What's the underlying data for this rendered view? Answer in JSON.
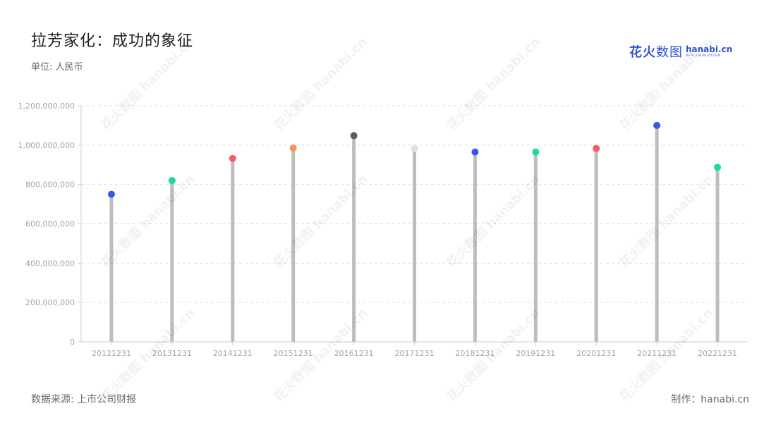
{
  "title": "拉芳家化：成功的象征",
  "unit_label": "单位: 人民币",
  "source_label": "数据来源: 上市公司财报",
  "credit_label": "制作：hanabi.cn",
  "logo": {
    "cn_text": "花火",
    "cn_text_light": "数图",
    "en_text": "hanabi.cn",
    "en_sub": "DATA VISUALIZATION"
  },
  "colors": {
    "stem": "#bdbdbd",
    "grid": "#dddddd",
    "axis": "#cccccc",
    "tick_label": "#a0a4ab",
    "brand": "#2f54d6"
  },
  "chart_data": {
    "type": "lollipop",
    "categories": [
      "20121231",
      "20131231",
      "20141231",
      "20151231",
      "20161231",
      "20171231",
      "20181231",
      "20191231",
      "20201231",
      "20211231",
      "20221231"
    ],
    "values": [
      750000000,
      820000000,
      932000000,
      985000000,
      1048000000,
      982000000,
      965000000,
      965000000,
      983000000,
      1100000000,
      887000000
    ],
    "point_colors": [
      "#3a57e8",
      "#1fd99a",
      "#f35d5d",
      "#f5935d",
      "#5b5d66",
      "#dcdfe4",
      "#3a57e8",
      "#1fd99a",
      "#f35d5d",
      "#3a57e8",
      "#1fd99a"
    ],
    "ylim": [
      0,
      1200000000
    ],
    "yticks": [
      0,
      200000000,
      400000000,
      600000000,
      800000000,
      1000000000,
      1200000000
    ],
    "ytick_labels": [
      "0",
      "200,000,000",
      "400,000,000",
      "600,000,000",
      "800,000,000",
      "1,000,000,000",
      "1,200,000,000"
    ],
    "grid": true
  }
}
